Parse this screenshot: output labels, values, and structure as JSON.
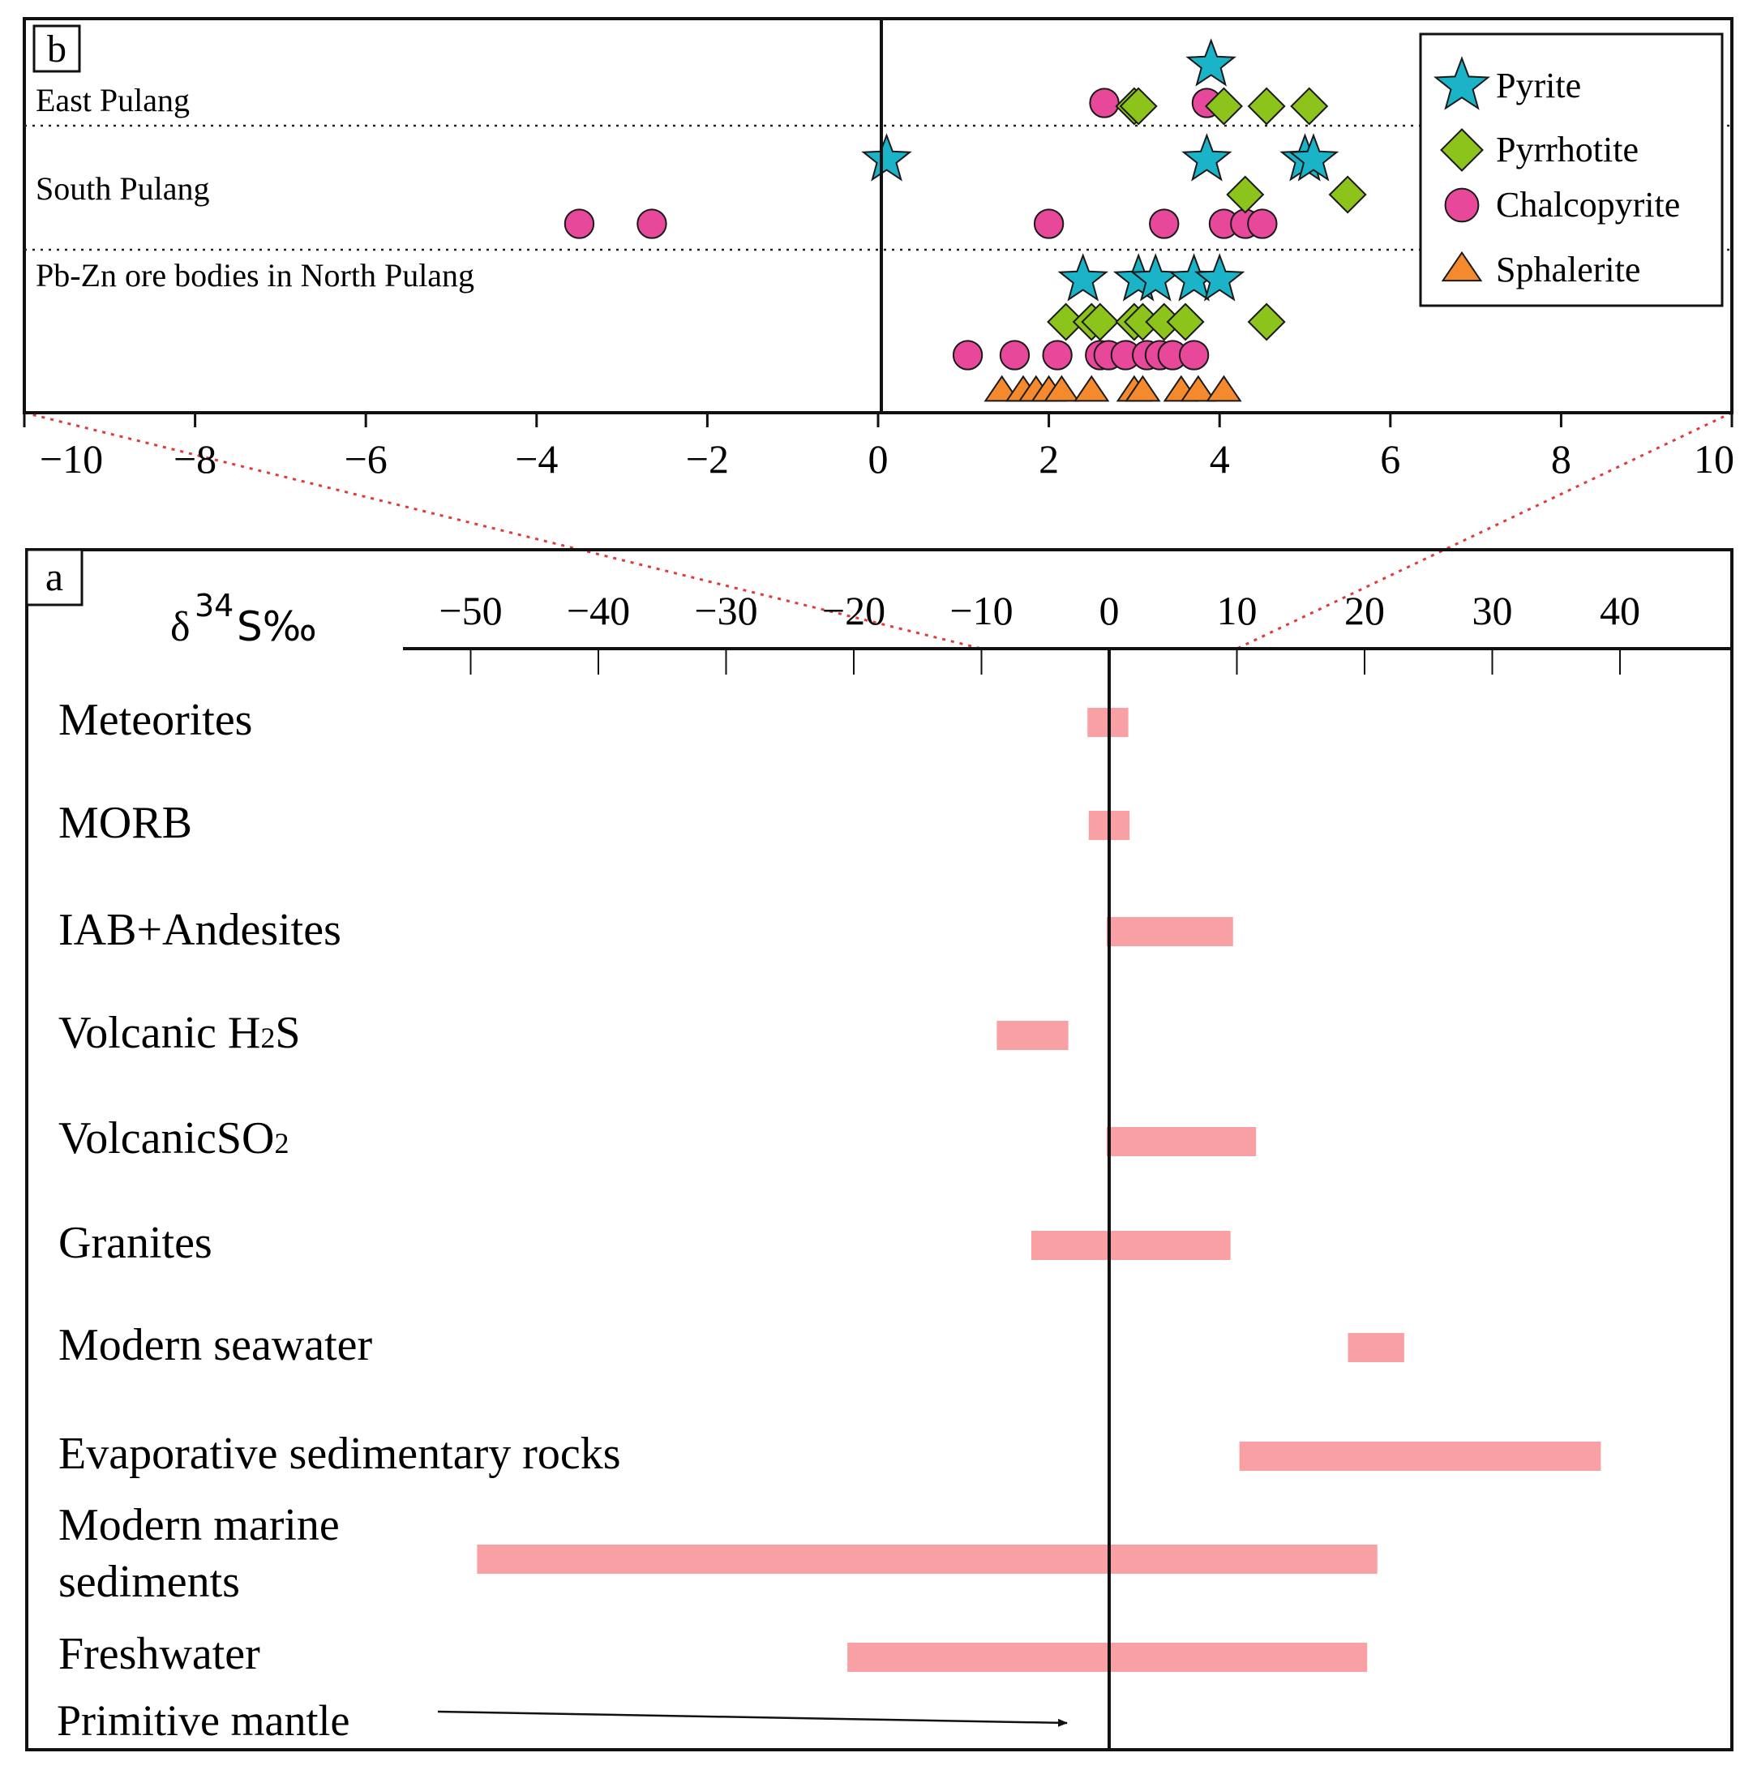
{
  "chart_data": [
    {
      "panel": "b",
      "type": "scatter",
      "panel_label": "b",
      "xlim": [
        -10,
        10
      ],
      "x_ticks": [
        -10,
        -8,
        -6,
        -4,
        -2,
        0,
        2,
        4,
        6,
        8,
        10
      ],
      "tick_labels": [
        "−10",
        "−8",
        "−6",
        "−4",
        "−2",
        "0",
        "2",
        "4",
        "6",
        "8",
        "10"
      ],
      "groups": [
        "East Pulang",
        "South Pulang",
        "Pb-Zn ore bodies in North Pulang"
      ],
      "legend": [
        "Pyrite",
        "Pyrrhotite",
        "Chalcopyrite",
        "Sphalerite"
      ],
      "series": [
        {
          "name": "Pyrite",
          "marker": "star",
          "color": "#1ab3c8",
          "points": [
            {
              "group": "East Pulang",
              "x": 3.9
            },
            {
              "group": "South Pulang",
              "x": 0.1
            },
            {
              "group": "South Pulang",
              "x": 3.85
            },
            {
              "group": "South Pulang",
              "x": 5.0
            },
            {
              "group": "South Pulang",
              "x": 5.1
            },
            {
              "group": "Pb-Zn ore bodies in North Pulang",
              "x": 2.4
            },
            {
              "group": "Pb-Zn ore bodies in North Pulang",
              "x": 3.05
            },
            {
              "group": "Pb-Zn ore bodies in North Pulang",
              "x": 3.25
            },
            {
              "group": "Pb-Zn ore bodies in North Pulang",
              "x": 3.7
            },
            {
              "group": "Pb-Zn ore bodies in North Pulang",
              "x": 4.0
            }
          ]
        },
        {
          "name": "Pyrrhotite",
          "marker": "diamond",
          "color": "#8dc41c",
          "points": [
            {
              "group": "East Pulang",
              "x": 3.0
            },
            {
              "group": "East Pulang",
              "x": 3.05
            },
            {
              "group": "East Pulang",
              "x": 4.05
            },
            {
              "group": "East Pulang",
              "x": 4.55
            },
            {
              "group": "East Pulang",
              "x": 5.05
            },
            {
              "group": "South Pulang",
              "x": 4.3
            },
            {
              "group": "South Pulang",
              "x": 5.5
            },
            {
              "group": "Pb-Zn ore bodies in North Pulang",
              "x": 2.2
            },
            {
              "group": "Pb-Zn ore bodies in North Pulang",
              "x": 2.5
            },
            {
              "group": "Pb-Zn ore bodies in North Pulang",
              "x": 2.6
            },
            {
              "group": "Pb-Zn ore bodies in North Pulang",
              "x": 3.0
            },
            {
              "group": "Pb-Zn ore bodies in North Pulang",
              "x": 3.1
            },
            {
              "group": "Pb-Zn ore bodies in North Pulang",
              "x": 3.35
            },
            {
              "group": "Pb-Zn ore bodies in North Pulang",
              "x": 3.6
            },
            {
              "group": "Pb-Zn ore bodies in North Pulang",
              "x": 4.55
            }
          ]
        },
        {
          "name": "Chalcopyrite",
          "marker": "circle",
          "color": "#e8489a",
          "points": [
            {
              "group": "East Pulang",
              "x": 2.65
            },
            {
              "group": "East Pulang",
              "x": 3.85
            },
            {
              "group": "South Pulang",
              "x": -3.5
            },
            {
              "group": "South Pulang",
              "x": -2.65
            },
            {
              "group": "South Pulang",
              "x": 2.0
            },
            {
              "group": "South Pulang",
              "x": 3.35
            },
            {
              "group": "South Pulang",
              "x": 4.05
            },
            {
              "group": "South Pulang",
              "x": 4.3
            },
            {
              "group": "South Pulang",
              "x": 4.5
            },
            {
              "group": "Pb-Zn ore bodies in North Pulang",
              "x": 1.05
            },
            {
              "group": "Pb-Zn ore bodies in North Pulang",
              "x": 1.6
            },
            {
              "group": "Pb-Zn ore bodies in North Pulang",
              "x": 2.1
            },
            {
              "group": "Pb-Zn ore bodies in North Pulang",
              "x": 2.6
            },
            {
              "group": "Pb-Zn ore bodies in North Pulang",
              "x": 2.7
            },
            {
              "group": "Pb-Zn ore bodies in North Pulang",
              "x": 2.9
            },
            {
              "group": "Pb-Zn ore bodies in North Pulang",
              "x": 3.15
            },
            {
              "group": "Pb-Zn ore bodies in North Pulang",
              "x": 3.3
            },
            {
              "group": "Pb-Zn ore bodies in North Pulang",
              "x": 3.45
            },
            {
              "group": "Pb-Zn ore bodies in North Pulang",
              "x": 3.7
            }
          ]
        },
        {
          "name": "Sphalerite",
          "marker": "triangle",
          "color": "#f5892e",
          "points": [
            {
              "group": "Pb-Zn ore bodies in North Pulang",
              "x": 1.45
            },
            {
              "group": "Pb-Zn ore bodies in North Pulang",
              "x": 1.7
            },
            {
              "group": "Pb-Zn ore bodies in North Pulang",
              "x": 1.85
            },
            {
              "group": "Pb-Zn ore bodies in North Pulang",
              "x": 2.0
            },
            {
              "group": "Pb-Zn ore bodies in North Pulang",
              "x": 2.15
            },
            {
              "group": "Pb-Zn ore bodies in North Pulang",
              "x": 2.5
            },
            {
              "group": "Pb-Zn ore bodies in North Pulang",
              "x": 3.0
            },
            {
              "group": "Pb-Zn ore bodies in North Pulang",
              "x": 3.1
            },
            {
              "group": "Pb-Zn ore bodies in North Pulang",
              "x": 3.55
            },
            {
              "group": "Pb-Zn ore bodies in North Pulang",
              "x": 3.75
            },
            {
              "group": "Pb-Zn ore bodies in North Pulang",
              "x": 4.05
            }
          ]
        }
      ]
    },
    {
      "panel": "a",
      "type": "bar",
      "orientation": "horizontal-range",
      "panel_label": "a",
      "xlabel": "δ",
      "xlabel_sup": "34",
      "xlabel_unit": "S‰",
      "xlim": [
        -55,
        45
      ],
      "x_ticks": [
        -50,
        -40,
        -30,
        -20,
        -10,
        0,
        10,
        20,
        30,
        40
      ],
      "tick_labels": [
        "−50",
        "−40",
        "−30",
        "−20",
        "−10",
        "0",
        "10",
        "20",
        "30",
        "40"
      ],
      "bar_color": "#f9a0a4",
      "categories": [
        {
          "label": "Meteorites",
          "range": [
            -1.7,
            1.5
          ]
        },
        {
          "label": "MORB",
          "range": [
            -1.6,
            1.6
          ]
        },
        {
          "label": "IAB+Andesites",
          "range": [
            -0.2,
            9.7
          ]
        },
        {
          "label": "Volcanic H₂S",
          "label_main": "Volcanic H",
          "label_sub": "2",
          "label_end": "S",
          "range": [
            -8.8,
            -3.2
          ]
        },
        {
          "label": "VolcanicSO₂",
          "label_main": "VolcanicSO",
          "label_sub": "2",
          "label_end": "",
          "range": [
            -0.2,
            11.5
          ]
        },
        {
          "label": "Granites",
          "range": [
            -6.1,
            9.5
          ]
        },
        {
          "label": "Modern seawater",
          "range": [
            18.7,
            23.1
          ]
        },
        {
          "label": "Evaporative sedimentary rocks",
          "range": [
            10.2,
            38.5
          ]
        },
        {
          "label": "Modern marine sediments",
          "label_line1": "Modern marine",
          "label_line2": "sediments",
          "range": [
            -49.5,
            21.0
          ]
        },
        {
          "label": "Freshwater",
          "range": [
            -20.5,
            20.2
          ]
        }
      ],
      "annotation": {
        "text": "Primitive mantle",
        "x": -3.3
      }
    }
  ]
}
